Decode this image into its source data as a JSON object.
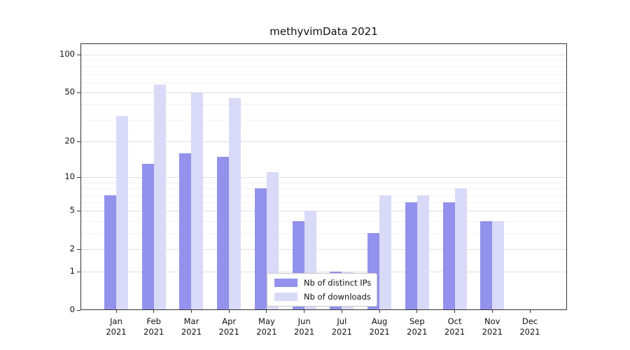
{
  "chart_data": {
    "type": "bar",
    "title": "methyvimData 2021",
    "categories": [
      "Jan 2021",
      "Feb 2021",
      "Mar 2021",
      "Apr 2021",
      "May 2021",
      "Jun 2021",
      "Jul 2021",
      "Aug 2021",
      "Sep 2021",
      "Oct 2021",
      "Nov 2021",
      "Dec 2021"
    ],
    "series": [
      {
        "name": "Nb of distinct IPs",
        "color": "#9292ec",
        "values": [
          7,
          13,
          16,
          15,
          8,
          4,
          1,
          3,
          6,
          6,
          4,
          0
        ]
      },
      {
        "name": "Nb of downloads",
        "color": "#d9d9f8",
        "values": [
          32,
          58,
          50,
          45,
          11,
          5,
          1,
          7,
          7,
          8,
          4,
          0
        ]
      }
    ],
    "y_axis": {
      "scale": "log10(1+x)",
      "ticks": [
        0,
        1,
        2,
        5,
        10,
        20,
        50,
        100
      ],
      "minor_gridlines": [
        3,
        4,
        6,
        7,
        8,
        9,
        30,
        40,
        60,
        70,
        80,
        90
      ],
      "range": [
        0,
        100
      ]
    },
    "grid": true,
    "legend": {
      "position": "inside-bottom-center"
    }
  }
}
